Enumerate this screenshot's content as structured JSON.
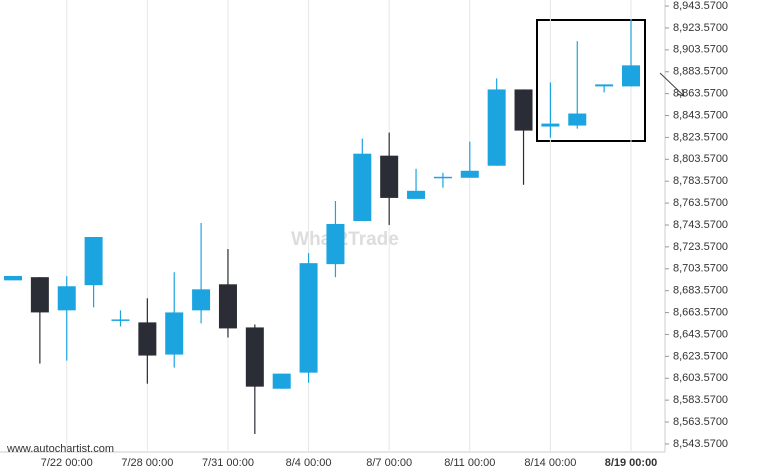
{
  "chart_data": {
    "type": "candlestick",
    "categories": [
      null,
      null,
      "7/22 00:00",
      null,
      null,
      "7/28 00:00",
      null,
      null,
      "7/31 00:00",
      null,
      null,
      "8/4 00:00",
      null,
      null,
      "8/7 00:00",
      null,
      null,
      "8/11 00:00",
      null,
      null,
      "8/14 00:00",
      null,
      null,
      "8/19 00:00"
    ],
    "open": [
      8693.0,
      8695.9,
      8665.6,
      8688.6,
      8657.3,
      8654.6,
      8625.2,
      8665.6,
      8689.4,
      8650.0,
      8594.0,
      8608.7,
      8707.8,
      8747.2,
      8806.9,
      8767.4,
      8787.6,
      8786.7,
      8797.7,
      8867.4,
      8833.5,
      8834.4,
      8870.2,
      8870.2
    ],
    "high": [
      8697.0,
      8696.0,
      8696.8,
      8732.6,
      8665.6,
      8676.6,
      8700.4,
      8745.4,
      8721.6,
      8652.7,
      8607.8,
      8717.9,
      8765.5,
      8822.5,
      8828.0,
      8794.9,
      8791.3,
      8819.7,
      8877.5,
      8867.4,
      8873.8,
      8911.5,
      8872.0,
      8930.7
    ],
    "low": [
      8693.0,
      8617.0,
      8619.7,
      8668.3,
      8650.9,
      8598.6,
      8613.3,
      8653.7,
      8640.8,
      8552.7,
      8594.0,
      8599.5,
      8695.9,
      8747.2,
      8743.6,
      8767.4,
      8777.6,
      8786.7,
      8797.7,
      8780.3,
      8823.4,
      8831.6,
      8864.7,
      8870.2
    ],
    "close": [
      8697.0,
      8663.7,
      8687.6,
      8732.6,
      8657.3,
      8624.3,
      8663.7,
      8684.8,
      8649.1,
      8595.9,
      8607.8,
      8708.7,
      8744.5,
      8808.7,
      8768.3,
      8774.8,
      8787.6,
      8793.1,
      8867.4,
      8829.8,
      8836.2,
      8845.4,
      8872.0,
      8889.4
    ],
    "up_color": "#1ba4e0",
    "down_color": "#2b2d36",
    "ylim": [
      8536.2,
      8949.1
    ],
    "yticks": [
      {
        "value": 8943.57,
        "label": "8,943.5700"
      },
      {
        "value": 8923.57,
        "label": "8,923.5700"
      },
      {
        "value": 8903.57,
        "label": "8,903.5700"
      },
      {
        "value": 8883.57,
        "label": "8,883.5700"
      },
      {
        "value": 8863.57,
        "label": "8,863.5700"
      },
      {
        "value": 8843.57,
        "label": "8,843.5700"
      },
      {
        "value": 8823.57,
        "label": "8,823.5700"
      },
      {
        "value": 8803.57,
        "label": "8,803.5700"
      },
      {
        "value": 8783.57,
        "label": "8,783.5700"
      },
      {
        "value": 8763.57,
        "label": "8,763.5700"
      },
      {
        "value": 8743.57,
        "label": "8,743.5700"
      },
      {
        "value": 8723.57,
        "label": "8,723.5700"
      },
      {
        "value": 8703.57,
        "label": "8,703.5700"
      },
      {
        "value": 8683.57,
        "label": "8,683.5700"
      },
      {
        "value": 8663.57,
        "label": "8,663.5700"
      },
      {
        "value": 8643.57,
        "label": "8,643.5700"
      },
      {
        "value": 8623.57,
        "label": "8,623.5700"
      },
      {
        "value": 8603.57,
        "label": "8,603.5700"
      },
      {
        "value": 8583.57,
        "label": "8,583.5700"
      },
      {
        "value": 8563.57,
        "label": "8,563.5700"
      },
      {
        "value": 8543.57,
        "label": "8,543.5700"
      }
    ],
    "grid": true,
    "watermark": "What2Trade",
    "source": "www.autochartist.com"
  }
}
